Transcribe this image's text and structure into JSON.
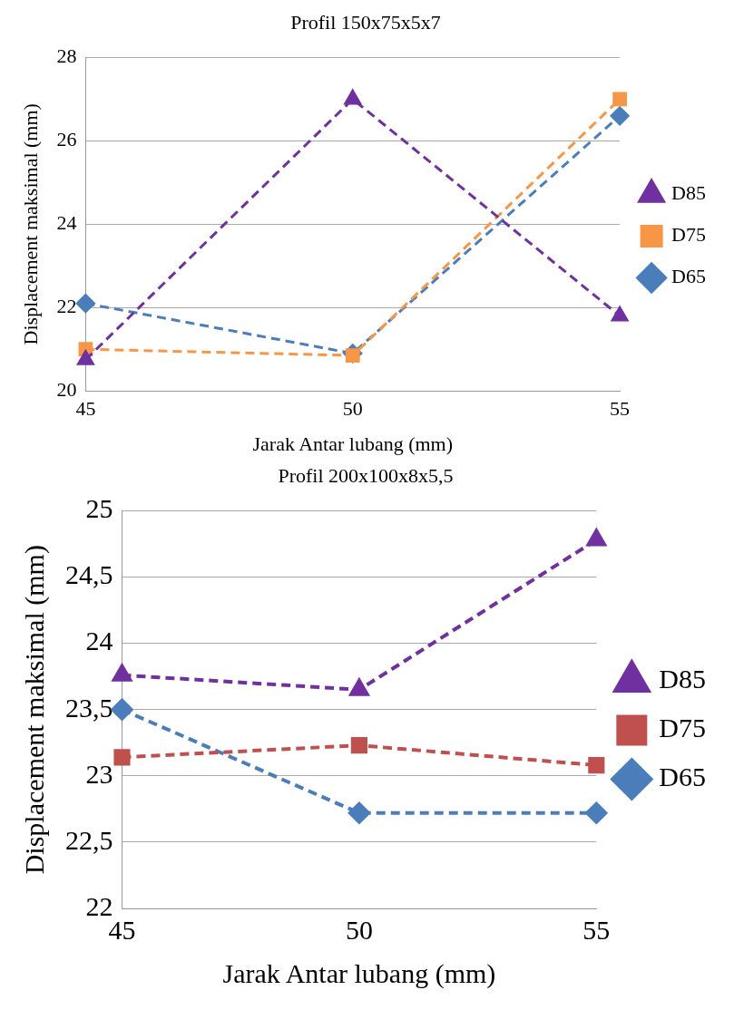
{
  "chart_data": [
    {
      "type": "line",
      "title": "Profil 150x75x5x7",
      "xlabel": "Jarak Antar lubang (mm)",
      "ylabel": "Displacement maksimal (mm)",
      "categories": [
        "45",
        "50",
        "55"
      ],
      "ylim": [
        20,
        28
      ],
      "yticks": [
        20,
        22,
        24,
        26,
        28
      ],
      "grid": "y",
      "legend": "right",
      "line_style": "dashed",
      "series": [
        {
          "name": "D65",
          "color": "#4a7ebb",
          "marker": "diamond",
          "values": [
            22.1,
            20.9,
            26.6
          ]
        },
        {
          "name": "D75",
          "color": "#f79646",
          "marker": "square",
          "values": [
            21.0,
            20.85,
            27.0
          ]
        },
        {
          "name": "D85",
          "color": "#7030a0",
          "marker": "triangle",
          "values": [
            20.75,
            27.0,
            21.8
          ]
        }
      ]
    },
    {
      "type": "line",
      "title": "Profil 200x100x8x5,5",
      "xlabel": "Jarak Antar lubang (mm)",
      "ylabel": "Displacement maksimal (mm)",
      "categories": [
        "45",
        "50",
        "55"
      ],
      "ylim": [
        22,
        25
      ],
      "yticks": [
        22,
        {
          "value": 22.5,
          "label": "22,5"
        },
        23,
        {
          "value": 23.5,
          "label": "23,5"
        },
        24,
        {
          "value": 24.5,
          "label": "24,5"
        },
        25
      ],
      "grid": "y",
      "legend": "right",
      "line_style": "dashed",
      "series": [
        {
          "name": "D65",
          "color": "#4a7ebb",
          "marker": "diamond",
          "values": [
            23.5,
            22.72,
            22.72
          ]
        },
        {
          "name": "D75",
          "color": "#c0504d",
          "marker": "square",
          "values": [
            23.14,
            23.23,
            23.08
          ]
        },
        {
          "name": "D85",
          "color": "#7030a0",
          "marker": "triangle",
          "values": [
            23.76,
            23.65,
            24.78
          ]
        }
      ]
    }
  ]
}
